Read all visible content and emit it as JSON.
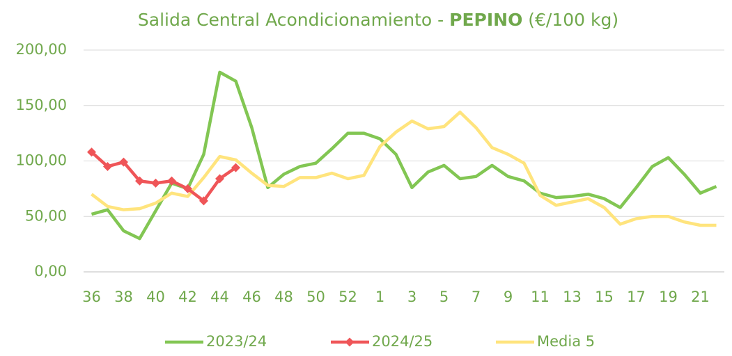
{
  "chart_data": {
    "type": "line",
    "title": [
      "Salida Central Acondicionamiento - ",
      "PEPINO",
      " (€/100 kg)"
    ],
    "categories": [
      "36",
      null,
      "38",
      null,
      "40",
      null,
      "42",
      null,
      "44",
      null,
      "46",
      null,
      "48",
      null,
      "50",
      null,
      "52",
      null,
      "1",
      null,
      "3",
      null,
      "5",
      null,
      "7",
      null,
      "9",
      null,
      "11",
      null,
      "13",
      null,
      "15",
      null,
      "17",
      null,
      "19",
      null,
      "21",
      null
    ],
    "series": [
      {
        "name": "2023/24",
        "color": "#82c653",
        "marker": false,
        "values": [
          52,
          56,
          37,
          30,
          55,
          80,
          75,
          106,
          180,
          172,
          130,
          76,
          88,
          95,
          98,
          111,
          125,
          125,
          120,
          106,
          76,
          90,
          96,
          84,
          86,
          96,
          86,
          82,
          71,
          67,
          68,
          70,
          66,
          58,
          76,
          95,
          103,
          88,
          71,
          77
        ]
      },
      {
        "name": "2024/25",
        "color": "#ef5558",
        "marker": true,
        "values": [
          108,
          95,
          99,
          82,
          80,
          82,
          75,
          64,
          84,
          94,
          null,
          null,
          null,
          null,
          null,
          null,
          null,
          null,
          null,
          null,
          null,
          null,
          null,
          null,
          null,
          null,
          null,
          null,
          null,
          null,
          null,
          null,
          null,
          null,
          null,
          null,
          null,
          null,
          null,
          null
        ]
      },
      {
        "name": "Media 5",
        "color": "#ffe47d",
        "marker": false,
        "values": [
          70,
          59,
          56,
          57,
          62,
          71,
          68,
          85,
          104,
          101,
          89,
          78,
          77,
          85,
          85,
          89,
          84,
          87,
          113,
          126,
          136,
          129,
          131,
          144,
          130,
          112,
          106,
          98,
          69,
          60,
          63,
          66,
          58,
          43,
          48,
          50,
          50,
          45,
          42,
          42
        ]
      }
    ],
    "ylim": [
      0,
      200
    ],
    "yticks": [
      {
        "value": 0,
        "label": "0,00"
      },
      {
        "value": 50,
        "label": "50,00"
      },
      {
        "value": 100,
        "label": "100,00"
      },
      {
        "value": 150,
        "label": "150,00"
      },
      {
        "value": 200,
        "label": "200,00"
      }
    ],
    "grid": true,
    "legend": "bottom"
  }
}
